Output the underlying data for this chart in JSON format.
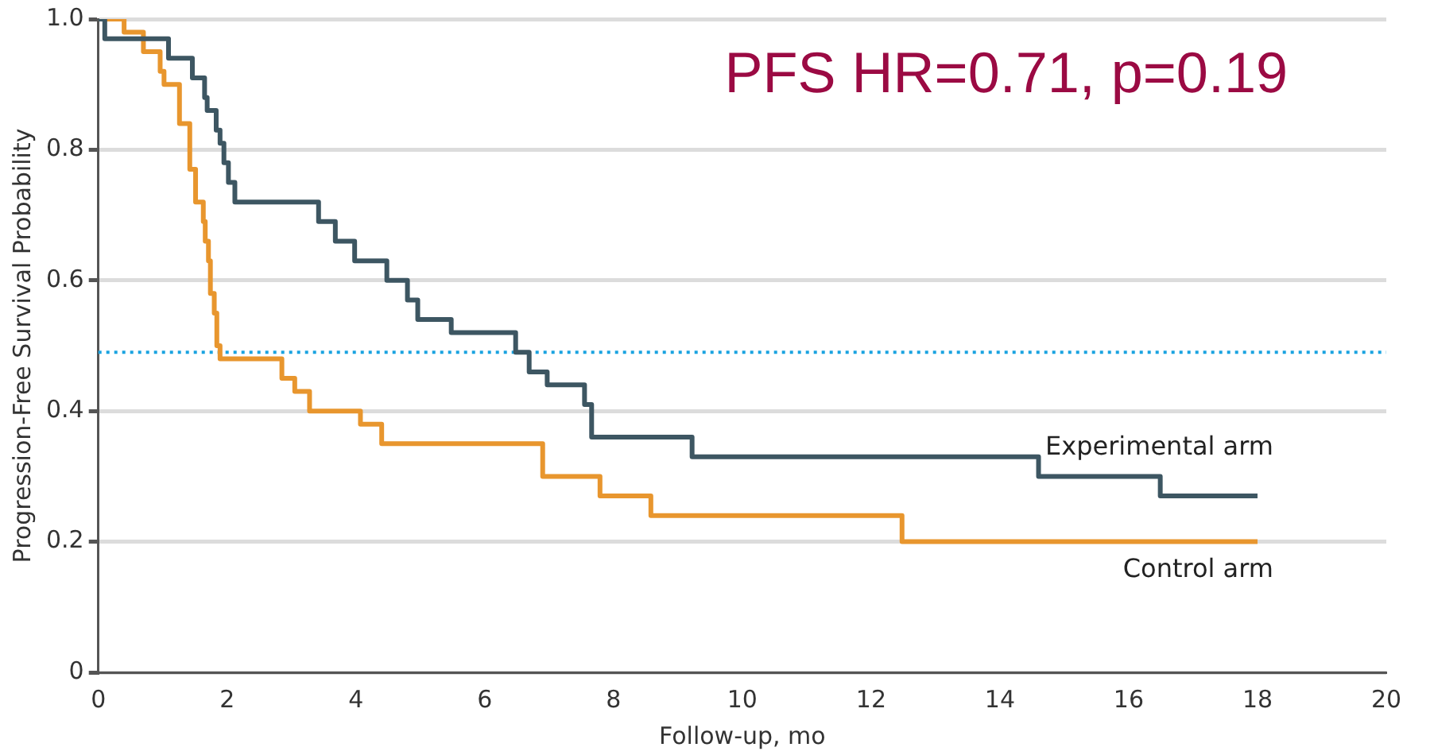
{
  "chart_data": {
    "type": "step",
    "xlabel": "Follow-up, mo",
    "ylabel": "Progression-Free Survival Probability",
    "xlim": [
      0,
      20
    ],
    "xticks": [
      0,
      2,
      4,
      6,
      8,
      10,
      12,
      14,
      16,
      18,
      20
    ],
    "ylim": [
      0,
      1
    ],
    "yticks": [
      {
        "value": 0,
        "label": "0"
      },
      0.2,
      0.4,
      0.6,
      0.8,
      {
        "value": 1,
        "label": "1.0"
      }
    ],
    "grid": "y",
    "legend": false,
    "line_style": "solid",
    "marker": "none",
    "series": [
      {
        "name": "Experimental arm",
        "color": "#3d5662",
        "x": [
          0,
          0.1,
          1.09,
          1.46,
          1.65,
          1.69,
          1.83,
          1.89,
          1.95,
          2.02,
          2.12,
          3.42,
          3.68,
          3.98,
          4.48,
          4.8,
          4.96,
          5.48,
          6.48,
          6.69,
          6.97,
          7.55,
          7.66,
          9.22,
          14.6,
          16.49,
          18
        ],
        "values": [
          1,
          0.97,
          0.94,
          0.91,
          0.88,
          0.86,
          0.83,
          0.81,
          0.78,
          0.75,
          0.72,
          0.69,
          0.66,
          0.63,
          0.6,
          0.57,
          0.54,
          0.52,
          0.49,
          0.46,
          0.44,
          0.41,
          0.36,
          0.33,
          0.3,
          0.27,
          0.27
        ]
      },
      {
        "name": "Control arm",
        "color": "#e8962e",
        "x": [
          0,
          0.4,
          0.7,
          0.96,
          1.02,
          1.26,
          1.42,
          1.51,
          1.63,
          1.66,
          1.71,
          1.74,
          1.8,
          1.84,
          1.89,
          2.85,
          3.05,
          3.28,
          4.07,
          4.4,
          6.9,
          7.79,
          8.58,
          12.48,
          18
        ],
        "values": [
          1,
          0.98,
          0.95,
          0.92,
          0.9,
          0.84,
          0.77,
          0.72,
          0.69,
          0.66,
          0.63,
          0.58,
          0.55,
          0.5,
          0.48,
          0.45,
          0.43,
          0.4,
          0.38,
          0.35,
          0.3,
          0.27,
          0.24,
          0.2,
          0.2
        ]
      }
    ],
    "ref_lines": [
      {
        "axis": "y",
        "value": 0.49,
        "color": "#1aa3e0",
        "line_style": "dotted"
      }
    ],
    "annotations": [
      "PFS HR=0.71, p=0.19"
    ]
  }
}
